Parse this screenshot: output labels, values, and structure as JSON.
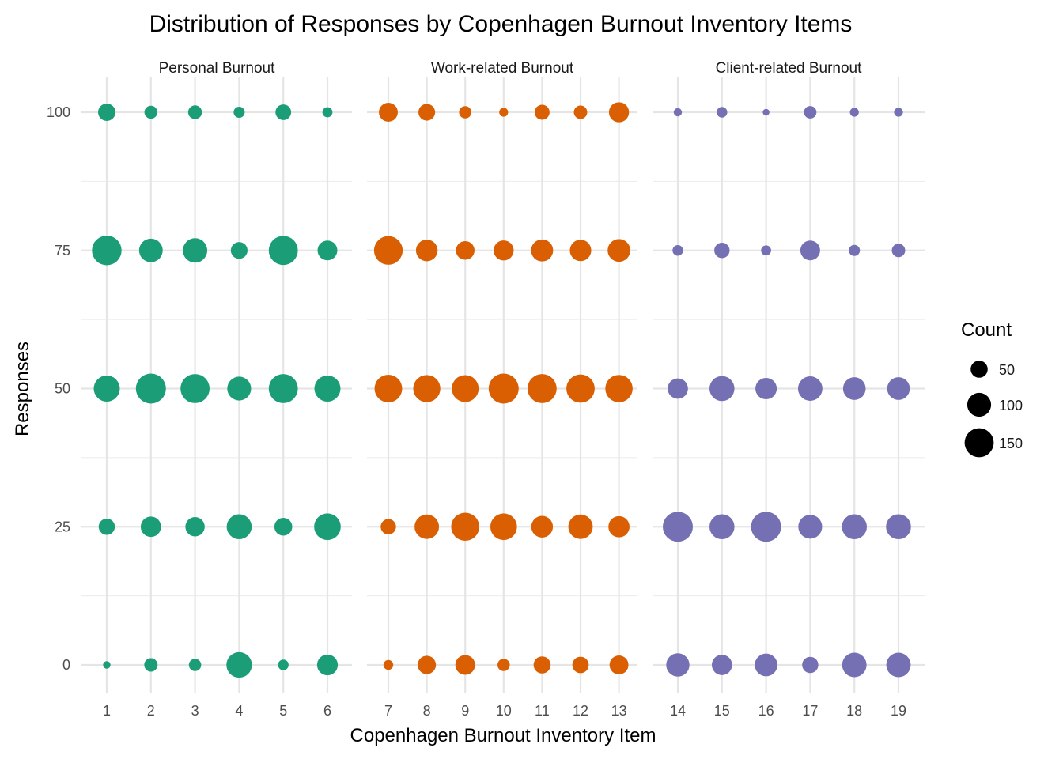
{
  "chart_data": {
    "type": "scatter",
    "title": "Distribution of Responses by Copenhagen Burnout Inventory Items",
    "xlabel": "Copenhagen Burnout Inventory Item",
    "ylabel": "Responses",
    "ylim": [
      -5,
      105
    ],
    "y_ticks": [
      0,
      25,
      50,
      75,
      100
    ],
    "grid": true,
    "legend": {
      "title": "Count",
      "placement": "right",
      "entries": [
        50,
        100,
        150
      ]
    },
    "size_range_count": [
      5,
      160
    ],
    "facets": [
      {
        "name": "Personal Burnout",
        "color": "#1B9E77",
        "items": [
          1,
          2,
          3,
          4,
          5,
          6
        ],
        "counts": {
          "100": [
            52,
            28,
            32,
            20,
            42,
            16
          ],
          "75": [
            155,
            98,
            105,
            48,
            150,
            68
          ],
          "50": [
            120,
            160,
            150,
            100,
            150,
            120
          ],
          "25": [
            45,
            72,
            65,
            110,
            55,
            125
          ],
          "0": [
            8,
            30,
            25,
            115,
            18,
            75
          ]
        }
      },
      {
        "name": "Work-related Burnout",
        "color": "#D95F02",
        "items": [
          7,
          8,
          9,
          10,
          11,
          12,
          13
        ],
        "counts": {
          "100": [
            62,
            48,
            25,
            12,
            38,
            30,
            70
          ],
          "75": [
            145,
            82,
            60,
            70,
            85,
            80,
            90
          ],
          "50": [
            135,
            130,
            128,
            162,
            150,
            142,
            132
          ],
          "25": [
            40,
            105,
            140,
            125,
            82,
            105,
            78
          ],
          "0": [
            15,
            58,
            68,
            25,
            50,
            46,
            62
          ]
        }
      },
      {
        "name": "Client-related Burnout",
        "color": "#7570B3",
        "items": [
          14,
          15,
          16,
          17,
          18,
          19
        ],
        "counts": {
          "100": [
            10,
            18,
            6,
            26,
            12,
            12
          ],
          "75": [
            18,
            40,
            16,
            68,
            20,
            30
          ],
          "50": [
            72,
            110,
            80,
            105,
            90,
            90
          ],
          "25": [
            165,
            110,
            165,
            100,
            110,
            110
          ],
          "0": [
            95,
            72,
            90,
            45,
            105,
            105
          ]
        }
      }
    ]
  }
}
